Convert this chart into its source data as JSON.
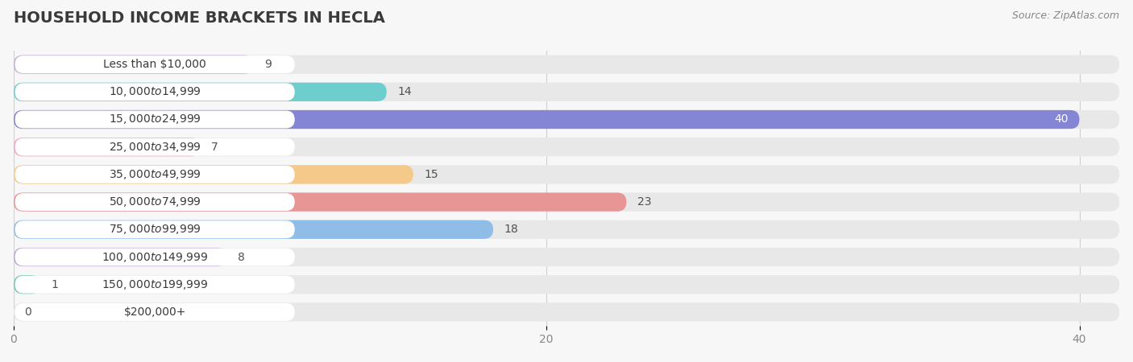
{
  "title": "HOUSEHOLD INCOME BRACKETS IN HECLA",
  "source": "Source: ZipAtlas.com",
  "categories": [
    "Less than $10,000",
    "$10,000 to $14,999",
    "$15,000 to $24,999",
    "$25,000 to $34,999",
    "$35,000 to $49,999",
    "$50,000 to $74,999",
    "$75,000 to $99,999",
    "$100,000 to $149,999",
    "$150,000 to $199,999",
    "$200,000+"
  ],
  "values": [
    9,
    14,
    40,
    7,
    15,
    23,
    18,
    8,
    1,
    0
  ],
  "colors": [
    "#c8afd6",
    "#6ecece",
    "#8585d5",
    "#f5a5bc",
    "#f5c98a",
    "#e89595",
    "#90bce8",
    "#c0a8d8",
    "#72c8b8",
    "#b5baec"
  ],
  "xlim": [
    0,
    41.5
  ],
  "xticks": [
    0,
    20,
    40
  ],
  "background_color": "#f7f7f7",
  "bar_bg_color": "#e8e8e8",
  "label_box_color": "#ffffff",
  "title_color": "#3a3a3a",
  "label_color": "#3a3a3a",
  "value_color_inside": "#ffffff",
  "value_color_outside": "#505050",
  "bar_height": 0.68,
  "title_fontsize": 14,
  "label_fontsize": 10,
  "value_fontsize": 10,
  "tick_fontsize": 10,
  "inside_threshold": 35
}
